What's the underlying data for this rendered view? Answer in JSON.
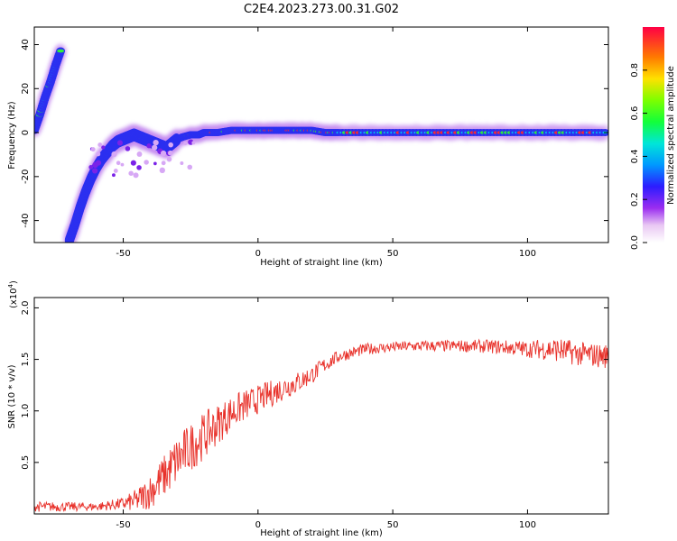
{
  "figure_title": "C2E4.2023.273.00.31.G02",
  "colors": {
    "snr_line": "#e8312a",
    "spectral_track": "#2b6fd6"
  },
  "chart_data": [
    {
      "type": "heatmap",
      "xlabel": "Height of straight line (km)",
      "ylabel": "Frequency (Hz)",
      "xlim": [
        -83,
        130
      ],
      "ylim": [
        -50,
        48
      ],
      "xticks": [
        -50,
        0,
        50,
        100
      ],
      "yticks": [
        -40,
        -20,
        0,
        20,
        40
      ],
      "colorbar": {
        "label": "Normalized spectral amplitude",
        "range": [
          0,
          1
        ],
        "ticks": [
          "0.0",
          "0.2",
          "0.4",
          "0.6",
          "0.8"
        ],
        "colormap": "rainbow"
      },
      "ridge": {
        "x": [
          -83,
          -81,
          -79,
          -77,
          -75,
          -73,
          -70,
          -68,
          -66,
          -64,
          -62,
          -60,
          -58,
          -56,
          -54,
          -52,
          -50,
          -48,
          -46,
          -44,
          -42,
          -40,
          -38,
          -36,
          -34,
          -32,
          -30,
          -28,
          -25,
          -22,
          -20,
          -15,
          -10,
          -5,
          0,
          5,
          10,
          15,
          20,
          25,
          30,
          40,
          50,
          60,
          70,
          80,
          90,
          100,
          110,
          120,
          130
        ],
        "y": [
          1,
          8,
          16,
          23,
          31,
          38,
          -49,
          -42,
          -34,
          -27,
          -21,
          -16,
          -12,
          -9,
          -6,
          -4,
          -3,
          -2,
          -1,
          -2,
          -3,
          -4,
          -5,
          -6,
          -7,
          -5,
          -3,
          -2,
          -1,
          -1,
          0,
          0,
          1,
          1,
          1,
          1,
          1,
          1,
          1,
          0,
          0,
          0,
          0,
          0,
          0,
          0,
          0,
          0,
          0,
          0,
          0
        ]
      }
    },
    {
      "type": "line",
      "xlabel": "Height of straight line (km)",
      "ylabel": "SNR (10 * v/v)",
      "y_multiplier_label": "(x10",
      "y_multiplier_exp": "4",
      "xlim": [
        -83,
        130
      ],
      "ylim": [
        0,
        2.1
      ],
      "xticks": [
        -50,
        0,
        50,
        100
      ],
      "yticks": [
        0.5,
        1.0,
        1.5,
        2.0
      ],
      "trend": {
        "x": [
          -83,
          -70,
          -60,
          -50,
          -45,
          -40,
          -35,
          -30,
          -25,
          -20,
          -15,
          -10,
          -5,
          0,
          5,
          10,
          15,
          20,
          25,
          30,
          40,
          50,
          60,
          70,
          80,
          90,
          100,
          110,
          120,
          130
        ],
        "y": [
          0.07,
          0.07,
          0.07,
          0.1,
          0.13,
          0.22,
          0.36,
          0.52,
          0.65,
          0.76,
          0.87,
          0.98,
          1.05,
          1.11,
          1.17,
          1.23,
          1.28,
          1.35,
          1.45,
          1.53,
          1.6,
          1.62,
          1.63,
          1.63,
          1.63,
          1.62,
          1.6,
          1.6,
          1.55,
          1.53
        ]
      },
      "noise_amplitude": {
        "x": [
          -83,
          -60,
          -50,
          -40,
          -30,
          -20,
          -10,
          0,
          10,
          20,
          30,
          50,
          80,
          100,
          110,
          130
        ],
        "a": [
          0.05,
          0.04,
          0.06,
          0.17,
          0.25,
          0.23,
          0.17,
          0.14,
          0.12,
          0.09,
          0.06,
          0.05,
          0.06,
          0.08,
          0.12,
          0.12
        ]
      }
    }
  ]
}
